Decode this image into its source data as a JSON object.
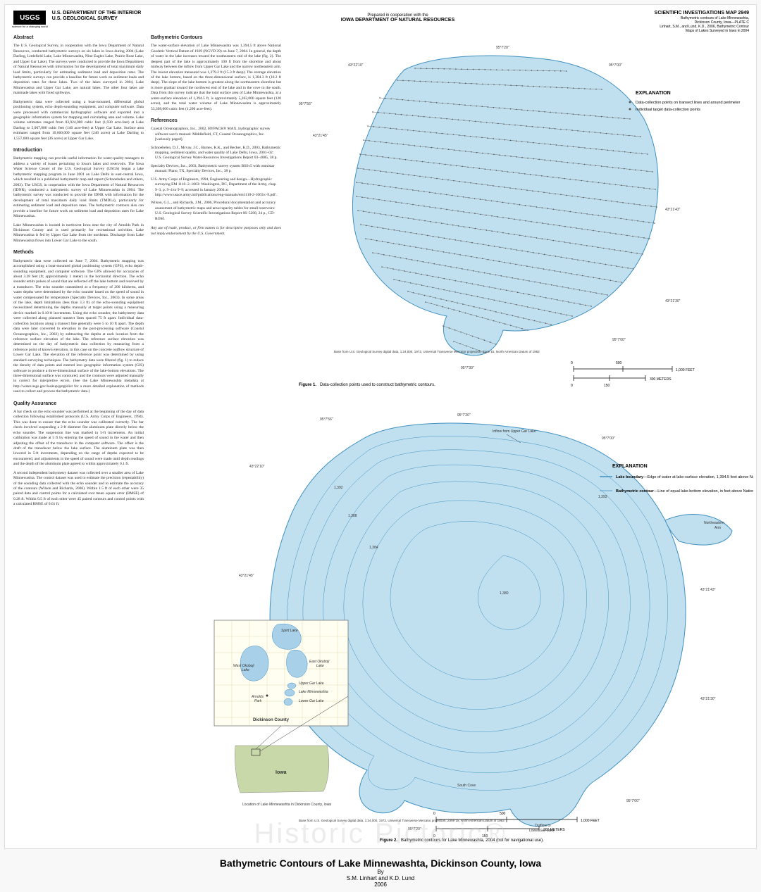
{
  "header": {
    "usgs_mark": "USGS",
    "usgs_tag": "science for a changing world",
    "dept1": "U.S. DEPARTMENT OF THE INTERIOR",
    "dept2": "U.S. GEOLOGICAL SURVEY",
    "prepared_small": "Prepared in cooperation with the",
    "prepared_big": "IOWA DEPARTMENT OF NATURAL RESOURCES",
    "pub_title": "SCIENTIFIC INVESTIGATIONS MAP 2949",
    "pub_sub1": "Bathymetric contours of Lake Minnewashta,",
    "pub_sub2": "Dickinson County, Iowa—PLATE C",
    "pub_sub3": "Linhart, S.M., and Lund, K.D., 2006, Bathymetric Contour",
    "pub_sub4": "Maps of Lakes Surveyed in Iowa in 2004"
  },
  "text": {
    "abstract_h": "Abstract",
    "abstract_p1": "The U.S. Geological Survey, in cooperation with the Iowa Department of Natural Resources, conducted bathymetric surveys on six lakes in Iowa during 2004 (Lake Darling, Littlefield Lake, Lake Minnewashta, Nine Eagles Lake, Prairie Rose Lake, and Upper Gar Lake). The surveys were conducted to provide the Iowa Department of Natural Resources with information for the development of total maximum daily load limits, particularly for estimating sediment load and deposition rates. The bathymetric surveys can provide a baseline for future work on sediment loads and deposition rates for these lakes. Two of the lakes surveyed in 2004, Lake Minnewashta and Upper Gar Lake, are natural lakes. The other four lakes are manmade lakes with fixed spillways.",
    "abstract_p2": "Bathymetric data were collected using a boat-mounted, differential global positioning system, echo depth-sounding equipment, and computer software. Data were processed with commercial hydrographic software and exported into a geographic information system for mapping and calculating area and volume. Lake volume estimates ranged from 83,924,000 cubic feet (1,930 acre-feet) at Lake Darling to 5,067,000 cubic feet (140 acre-feet) at Upper Gar Lake. Surface area estimates ranged from 10,660,000 square feet (240 acres) at Lake Darling to 1,557,000 square feet (36 acres) at Upper Gar Lake.",
    "intro_h": "Introduction",
    "intro_p1": "Bathymetric mapping can provide useful information for water-quality managers to address a variety of issues pertaining to Iowa's lakes and reservoirs. The Iowa Water Science Center of the U.S. Geological Survey (USGS) began a lake bathymetric mapping program in June 2001 on Lake Delhi in east-central Iowa, which resulted in a published bathymetric map and report (Schnoebelen and others, 2003). The USGS, in cooperation with the Iowa Department of Natural Resources (IDNR), conducted a bathymetric survey of Lake Minnewashta in 2004. The bathymetric survey was conducted to provide the IDNR with information for the development of total maximum daily load limits (TMDLs), particularly for estimating sediment load and deposition rates. The bathymetric contours also can provide a baseline for future work on sediment load and deposition rates for Lake Minnewashta.",
    "intro_p2": "Lake Minnewashta is located in northwest Iowa near the city of Arnolds Park in Dickinson County and is used primarily for recreational activities. Lake Minnewashta is fed by Upper Gar Lake from the northeast. Discharge from Lake Minnewashta flows into Lower Gar Lake to the south.",
    "methods_h": "Methods",
    "methods_p1": "Bathymetric data were collected on June 7, 2004. Bathymetric mapping was accomplished using a boat-mounted global positioning system (GPS), echo depth-sounding equipment, and computer software. The GPS allowed for accuracies of about 3.28 feet (ft; approximately 1 meter) in the horizontal direction. The echo sounder emits pulses of sound that are reflected off the lake bottom and received by a transducer. The echo sounder transmitted at a frequency of 200 kilohertz, and water depths were determined by the echo sounder based on the speed of sound in water compensated for temperature (Specialty Devices, Inc., 2003). In some areas of the lake, depth limitations (less than 3.3 ft) of the echo-sounding equipment necessitated determining the depths manually at target points using a measuring device marked in 0.10-ft increments. Using the echo sounder, the bathymetry data were collected along planned transect lines spaced 75 ft apart. Individual data-collection locations along a transect line generally were 5 to 10 ft apart. The depth data were later converted to elevation in the post-processing software (Coastal Oceanographics, Inc., 2002) by subtracting the depths at each location from the reference surface elevation of the lake. The reference surface elevation was determined on the day of bathymetric data collection by measuring from a reference point of known elevation, in this case on the concrete outflow structure of Lower Gar Lake. The elevation of the reference point was determined by using standard surveying techniques. The bathymetry data were filtered (fig. 1) to reduce the density of data points and entered into geographic information system (GIS) software to produce a three-dimensional surface of the lake-bottom elevations. The three-dimensional surface was contoured, and the contours were adjusted manually to correct for interpretive errors. (See the Lake Minnewashta metadata at http://water.usgs.gov/lookup/getgislist for a more detailed explanation of methods used to collect and process the bathymetric data.)",
    "qa_h": "Quality Assurance",
    "qa_p1": "A bar check on the echo sounder was performed at the beginning of the day of data collection following established protocols (U.S. Army Corps of Engineers, 1994). This was done to ensure that the echo sounder was calibrated correctly. The bar check involved suspending a 2-ft diameter flat aluminum plate directly below the echo sounder. The suspension line was marked in 5-ft increments. An initial calibration was made at 5 ft by entering the speed of sound in the water and then adjusting the offset of the transducer in the computer software. The offset is the draft of the transducer below the lake surface. The aluminum plate was then lowered in 5-ft increments, depending on the range of depths expected to be encountered, and adjustments in the speed of sound were made until depth readings and the depth of the aluminum plate agreed to within approximately 0.1 ft.",
    "qa_p2": "A second independent bathymetry dataset was collected over a smaller area of Lake Minnewashta. The control dataset was used to estimate the precision (repeatability) of the sounding data collected with the echo sounder and to estimate the accuracy of the contours (Wilson and Richards, 2006). Within 1.5 ft of each other were 35 paired data and control points for a calculated root mean square error (RMSE) of 0.28 ft. Within 0.5 ft of each other were 45 paired contours and control points with a calculated RMSE of 0.61 ft.",
    "bath_h": "Bathymetric Contours",
    "bath_p1": "The water-surface elevation of Lake Minnewashta was 1,394.5 ft above National Geodetic Vertical Datum of 1929 (NGVD 29) on June 7, 2004. In general, the depth of water in the lake increases toward the southeastern end of the lake (fig. 2). The deepest part of the lake is approximately 100 ft from the shoreline and about midway between the inflow from Upper Gar Lake and the narrow northeastern arm. The lowest elevation measured was 1,379.2 ft (15.3 ft deep). The average elevation of the lake bottom, based on the three-dimensional surface, is 1,384.3 ft (10.2 ft deep). The slope of the lake bottom is greatest along the northeastern shoreline but is more gradual toward the northwest end of the lake and in the cove to the south. Data from this survey indicate that the total surface area of Lake Minnewashta, at a water-surface elevation of 1,394.5 ft, is approximately 5,262,000 square feet (120 acres), and the total water volume of Lake Minnewashta is approximately 53,398,000 cubic feet (1,200 acre-feet).",
    "refs_h": "References",
    "ref1": "Coastal Oceanographics, Inc., 2002, HYPACK® MAX, hydrographic survey software user's manual: Middlefield, CT, Coastal Oceanographics, Inc. [variously paged].",
    "ref2": "Schnoebelen, D.J., Mcvay, J.C., Barnes, K.K., and Becher, K.D., 2003, Bathymetric mapping, sediment quality, and water quality of Lake Delhi, Iowa, 2001–02: U.S. Geological Survey Water-Resources Investigations Report 03–4085, 38 p.",
    "ref3": "Specialty Devices, Inc., 2003, Bathymetric survey system BSSv5 with omnistar manual: Plano, TX, Specialty Devices, Inc., 38 p.",
    "ref4": "U.S. Army Corps of Engineers, 1994, Engineering and design—Hydrographic surveying EM 1110–2–1003: Washington, DC, Department of the Army, chap. 9–3, p. 9–4 to 9–9; accessed in January 2004 at http://www.usace.army.mil/publications/eng-manuals/em1110-2-1003/c-9.pdf .",
    "ref5": "Wilson, G.L., and Richards, J.M., 2006, Procedural documentation and accuracy assessment of bathymetric maps and area/capacity tables for small reservoirs: U.S. Geological Survey Scientific Investigations Report 06–5208, 24 p., CD-ROM.",
    "disclaimer": "Any use of trade, product, or firm names is for descriptive purposes only and does not imply endorsement by the U.S. Government."
  },
  "fig1": {
    "exp_title": "EXPLANATION",
    "exp_item1": "Data-collection points on transect lines and around perimeter",
    "exp_item2": "Individual target data-collection points",
    "caption": "Figure 1.   Data-collection points used to construct bathymetric contours.",
    "base_note": "Base from U.S. Geological Survey digital data, 1:24,000, 1972, Universal Transverse Mercator projection, Zone 15, North American Datum of 1983",
    "scale_feet": "1,000 FEET",
    "scale_meters": "300 METERS",
    "coords": [
      "95°7'00\"",
      "95°7'20\"",
      "43°21'45\"",
      "95°7'56\"",
      "43°22'10\"",
      "43°21'43\"",
      "43°21'30\"",
      "95°7'00\"",
      "95°7'30\""
    ],
    "lake_color": "#c0e0f0",
    "stroke_color": "#4090c0"
  },
  "fig2": {
    "exp_title": "EXPLANATION",
    "exp_boundary_label": "Lake boundary",
    "exp_boundary_text": "—Edge of water at lake-surface elevation, 1,394.5 feet above National Geodetic Vertical Datum of 1929",
    "exp_contour_label": "Bathymetric contour",
    "exp_contour_text": "—Line of equal lake-bottom elevation, in feet above National Geodetic Vertical Datum of 1929. Interval is 2 feet. Hachures indicate closed low",
    "inflow_label": "Inflow from Upper Gar Lake",
    "ne_arm_label": "Northeastern Arm",
    "south_cove_label": "South Cove",
    "outflow_label": "Outflow to Lower Gar Lake",
    "caption": "Figure 2.   Bathymetric contours for Lake Minnewashta, 2004 (not for navigational use).",
    "base_note": "Base from U.S. Geological Survey digital data, 1:24,000, 1972, Universal Transverse Mercator projection, Zone 15, North American Datum of 1983",
    "scale_feet": "1,000 FEET",
    "scale_meters": "300 METERS",
    "loc_caption": "Location of Lake Minnewashta in Dickinson County, Iowa",
    "coords": [
      "95°7'56\"",
      "43°22'10\"",
      "95°7'20\"",
      "95°7'00\"",
      "43°21'45\"",
      "43°21'43\"",
      "43°21'30\"",
      "95°7'30\"",
      "43°21'15\"",
      "95°7'20\""
    ],
    "contour_labels": [
      "1,394",
      "1,392",
      "1,390",
      "1,388",
      "1,386",
      "1,384",
      "1,382",
      "1,380",
      "1,393"
    ],
    "inset": {
      "spirit": "Spirit Lake",
      "west_okoboji": "West Okoboji Lake",
      "east_okoboji": "East Okoboji Lake",
      "upper_gar": "Upper Gar Lake",
      "minne": "Lake Minnewashta",
      "lower_gar": "Lower Gar Lake",
      "arnolds": "Arnolds Park",
      "county": "Dickinson   County",
      "iowa": "Iowa"
    }
  },
  "footer": {
    "main": "Bathymetric Contours of Lake Minnewashta, Dickinson County, Iowa",
    "by": "By",
    "authors": "S.M. Linhart and K.D. Lund",
    "year": "2006"
  },
  "watermark": "Historic Pictoric®"
}
